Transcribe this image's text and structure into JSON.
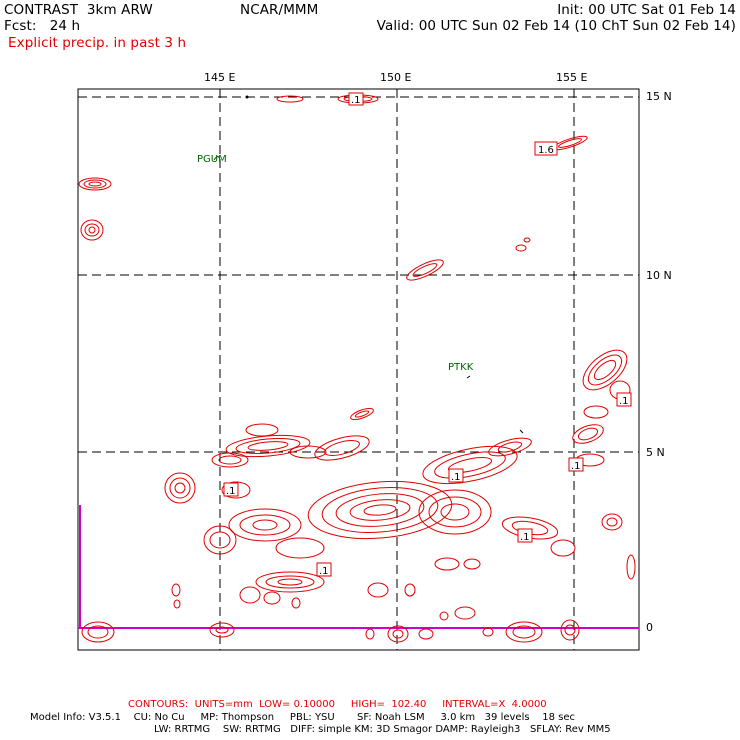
{
  "header": {
    "model": "CONTRAST  3km ARW",
    "forecast": "Fcst:   24 h",
    "org": "NCAR/MMM",
    "init": "Init: 00 UTC Sat 01 Feb 14",
    "valid": "Valid: 00 UTC Sun 02 Feb 14 (10 ChT Sun 02 Feb 14)",
    "field": "Explicit precip. in past 3 h"
  },
  "map": {
    "lon_labels": [
      "145 E",
      "150 E",
      "155 E"
    ],
    "lat_labels": [
      "15 N",
      "10 N",
      "5 N",
      "0"
    ],
    "stations": [
      "PGUM",
      "PTKK"
    ],
    "contour_labels": [
      ".1",
      "1.6",
      ".1",
      ".1",
      ".1",
      ".1",
      ".1",
      ".1"
    ],
    "colors": {
      "contour": "#e00000",
      "grid": "#000000",
      "station": "#006600",
      "coast": "#cc00cc"
    }
  },
  "footer": {
    "contours": "CONTOURS:  UNITS=mm  LOW= 0.10000     HIGH=  102.40     INTERVAL=X  4.0000",
    "info1": "Model Info: V3.5.1    CU: No Cu     MP: Thompson     PBL: YSU       SF: Noah LSM     3.0 km   39 levels    18 sec",
    "info2": "LW: RRTMG    SW: RRTMG   DIFF: simple KM: 3D Smagor DAMP: Rayleigh3   SFLAY: Rev MM5"
  }
}
